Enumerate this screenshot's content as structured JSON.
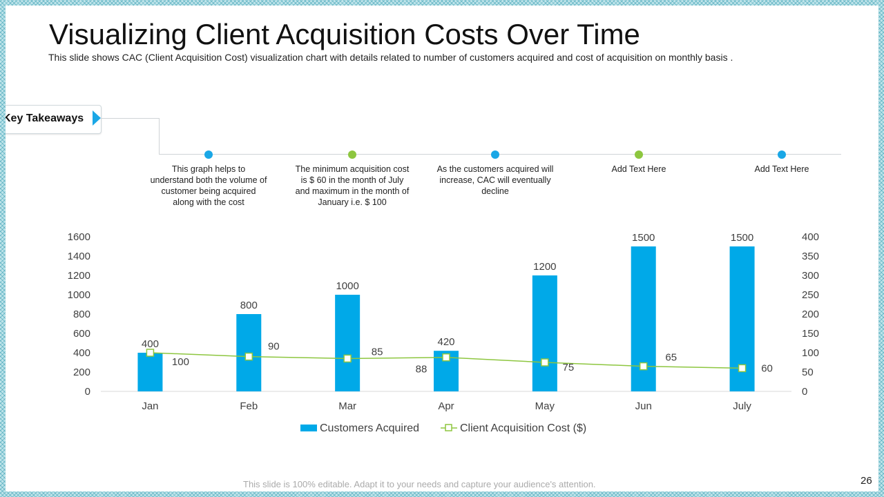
{
  "slide": {
    "title": "Visualizing Client Acquisition Costs Over Time",
    "subtitle": "This slide shows CAC (Client Acquisition Cost) visualization chart with details related to number of customers acquired and cost of acquisition on monthly basis .",
    "key_takeaways_label": "Key Takeaways",
    "footer": "This slide is 100% editable. Adapt it to your needs and capture your audience's attention.",
    "page_number": "26"
  },
  "takeaways": [
    {
      "text": "This graph helps to understand both the volume of customer being acquired along with the cost",
      "dot_color": "#1aa7e6"
    },
    {
      "text": "The minimum acquisition cost is $ 60 in the month of July and maximum in the month of January i.e. $ 100",
      "dot_color": "#8dc63f"
    },
    {
      "text": "As the customers acquired will increase, CAC will eventually decline",
      "dot_color": "#1aa7e6"
    },
    {
      "text": "Add Text Here",
      "dot_color": "#8dc63f"
    },
    {
      "text": "Add Text Here",
      "dot_color": "#1aa7e6"
    }
  ],
  "colors": {
    "bar": "#00a9e8",
    "line": "#8dc63f",
    "accent_blue": "#1aa7e6",
    "accent_green": "#8dc63f"
  },
  "chart_data": {
    "type": "bar",
    "categories": [
      "Jan",
      "Feb",
      "Mar",
      "Apr",
      "May",
      "Jun",
      "July"
    ],
    "series": [
      {
        "name": "Customers Acquired",
        "type": "bar",
        "axis": "left",
        "values": [
          400,
          800,
          1000,
          420,
          1200,
          1500,
          1500
        ]
      },
      {
        "name": "Client Acquisition Cost ($)",
        "type": "line",
        "axis": "right",
        "values": [
          100,
          90,
          85,
          88,
          75,
          65,
          60
        ]
      }
    ],
    "y_left": {
      "min": 0,
      "max": 1600,
      "step": 200,
      "ticks": [
        "0",
        "200",
        "400",
        "600",
        "800",
        "1000",
        "1200",
        "1400",
        "1600"
      ]
    },
    "y_right": {
      "min": 0,
      "max": 400,
      "step": 50,
      "ticks": [
        "0",
        "50",
        "100",
        "150",
        "200",
        "250",
        "300",
        "350",
        "400"
      ]
    },
    "legend": [
      "Customers Acquired",
      "Client Acquisition Cost ($)"
    ],
    "legend_position": "bottom",
    "grid": false
  }
}
